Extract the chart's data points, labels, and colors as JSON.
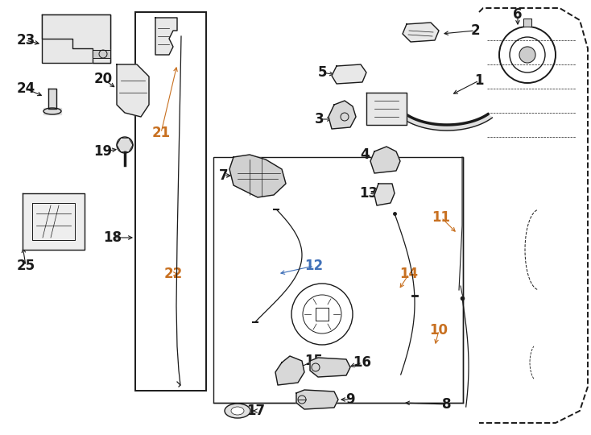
{
  "bg_color": "#ffffff",
  "fig_width": 7.34,
  "fig_height": 5.4,
  "dpi": 100,
  "special_colors": {
    "10": "#c87020",
    "11": "#c87020",
    "12": "#4070b8",
    "14": "#c87020",
    "21": "#c87020",
    "22": "#c87020"
  }
}
